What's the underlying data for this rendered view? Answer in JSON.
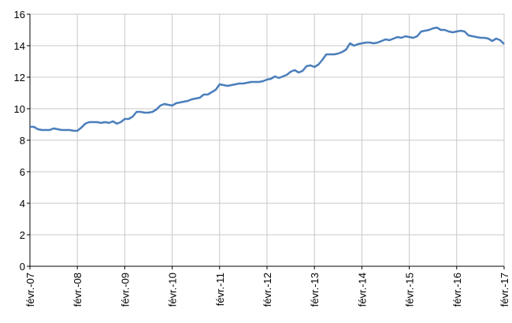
{
  "chart_data": {
    "type": "line",
    "categories": [
      "févr.-07",
      null,
      null,
      null,
      null,
      null,
      null,
      null,
      null,
      null,
      null,
      null,
      "févr.-08",
      null,
      null,
      null,
      null,
      null,
      null,
      null,
      null,
      null,
      null,
      null,
      "févr.-09",
      null,
      null,
      null,
      null,
      null,
      null,
      null,
      null,
      null,
      null,
      null,
      "févr.-10",
      null,
      null,
      null,
      null,
      null,
      null,
      null,
      null,
      null,
      null,
      null,
      "févr.-11",
      null,
      null,
      null,
      null,
      null,
      null,
      null,
      null,
      null,
      null,
      null,
      "févr.-12",
      null,
      null,
      null,
      null,
      null,
      null,
      null,
      null,
      null,
      null,
      null,
      "févr.-13",
      null,
      null,
      null,
      null,
      null,
      null,
      null,
      null,
      null,
      null,
      null,
      "févr.-14",
      null,
      null,
      null,
      null,
      null,
      null,
      null,
      null,
      null,
      null,
      null,
      "févr.-15",
      null,
      null,
      null,
      null,
      null,
      null,
      null,
      null,
      null,
      null,
      null,
      "févr.-16",
      null,
      null,
      null,
      null,
      null,
      null,
      null,
      null,
      null,
      null,
      null,
      "févr.-17"
    ],
    "values": [
      8.85,
      8.85,
      8.7,
      8.65,
      8.65,
      8.65,
      8.75,
      8.7,
      8.65,
      8.65,
      8.65,
      8.6,
      8.6,
      8.8,
      9.05,
      9.15,
      9.15,
      9.15,
      9.1,
      9.15,
      9.1,
      9.2,
      9.05,
      9.15,
      9.35,
      9.35,
      9.5,
      9.8,
      9.8,
      9.75,
      9.75,
      9.8,
      9.95,
      10.2,
      10.3,
      10.25,
      10.2,
      10.35,
      10.4,
      10.45,
      10.5,
      10.6,
      10.65,
      10.7,
      10.9,
      10.9,
      11.05,
      11.2,
      11.55,
      11.5,
      11.45,
      11.5,
      11.55,
      11.6,
      11.6,
      11.65,
      11.7,
      11.7,
      11.7,
      11.75,
      11.85,
      11.9,
      12.05,
      11.95,
      12.05,
      12.15,
      12.35,
      12.45,
      12.3,
      12.4,
      12.7,
      12.75,
      12.65,
      12.8,
      13.1,
      13.45,
      13.45,
      13.45,
      13.5,
      13.6,
      13.75,
      14.15,
      14.0,
      14.1,
      14.15,
      14.2,
      14.2,
      14.15,
      14.2,
      14.3,
      14.4,
      14.35,
      14.45,
      14.55,
      14.5,
      14.6,
      14.55,
      14.5,
      14.6,
      14.9,
      14.95,
      15.0,
      15.1,
      15.15,
      15.0,
      15.0,
      14.9,
      14.85,
      14.9,
      14.95,
      14.9,
      14.65,
      14.6,
      14.55,
      14.5,
      14.5,
      14.45,
      14.3,
      14.45,
      14.35,
      14.1
    ],
    "color": "#4a7ebb",
    "ylim": [
      0,
      16
    ],
    "yticks": [
      0,
      2,
      4,
      6,
      8,
      10,
      12,
      14,
      16
    ],
    "grid": true
  }
}
